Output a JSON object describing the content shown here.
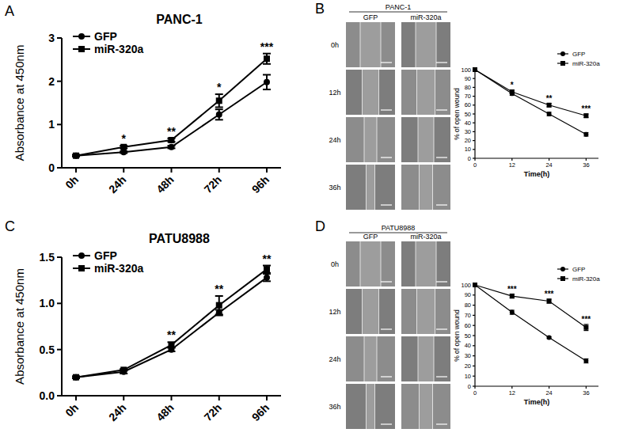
{
  "panel_labels": [
    "A",
    "B",
    "C",
    "D"
  ],
  "image_panels": [
    {
      "title": "PANC-1",
      "columns": [
        "GFP",
        "miR-320a"
      ],
      "rows": [
        "0h",
        "12h",
        "24h",
        "36h"
      ]
    },
    {
      "title": "PATU8988",
      "columns": [
        "GFP",
        "miR-320a"
      ],
      "rows": [
        "0h",
        "12h",
        "24h",
        "36h"
      ]
    }
  ],
  "chart_data": [
    {
      "type": "line",
      "title": "PANC-1",
      "y_label": "Absorbance at 450nm",
      "categories": [
        "0h",
        "24h",
        "48h",
        "72h",
        "96h"
      ],
      "ylim": [
        0,
        3
      ],
      "yticks": [
        0,
        1,
        2,
        3
      ],
      "legend": "upper left",
      "series": [
        {
          "name": "GFP",
          "color": "#000000",
          "marker": "circle",
          "values": [
            0.28,
            0.36,
            0.48,
            1.23,
            1.98
          ],
          "errors": [
            0.02,
            0.02,
            0.03,
            0.12,
            0.17
          ]
        },
        {
          "name": "miR-320a",
          "color": "#000000",
          "marker": "square",
          "values": [
            0.28,
            0.48,
            0.64,
            1.55,
            2.52
          ],
          "errors": [
            0.02,
            0.03,
            0.04,
            0.15,
            0.12
          ]
        }
      ],
      "annotations": [
        null,
        "*",
        "**",
        "*",
        "***"
      ]
    },
    {
      "type": "line",
      "x_label": "Time(h)",
      "y_label": "% of open wound",
      "x": [
        0,
        12,
        24,
        36
      ],
      "xlim": [
        0,
        40
      ],
      "xticks": [
        0,
        12,
        24,
        36
      ],
      "ylim": [
        0,
        100
      ],
      "yticks": [
        0,
        10,
        20,
        30,
        40,
        50,
        60,
        70,
        80,
        90,
        100
      ],
      "legend": "upper right",
      "series": [
        {
          "name": "GFP",
          "color": "#000000",
          "marker": "circle",
          "values": [
            100,
            73,
            50,
            27
          ],
          "errors": [
            0,
            2,
            2,
            2
          ]
        },
        {
          "name": "miR-320a",
          "color": "#000000",
          "marker": "square",
          "values": [
            100,
            75,
            60,
            48
          ],
          "errors": [
            0,
            2,
            2,
            2
          ]
        }
      ],
      "annotations": [
        null,
        "*",
        "**",
        "***"
      ]
    },
    {
      "type": "line",
      "title": "PATU8988",
      "y_label": "Absorbance at 450nm",
      "categories": [
        "0h",
        "24h",
        "48h",
        "72h",
        "96h"
      ],
      "ylim": [
        0,
        1.5
      ],
      "yticks": [
        {
          "value": 0,
          "label": "0.0"
        },
        {
          "value": 0.5,
          "label": "0.5"
        },
        {
          "value": 1,
          "label": "1.0"
        },
        {
          "value": 1.5,
          "label": "1.5"
        }
      ],
      "legend": "upper left",
      "series": [
        {
          "name": "GFP",
          "color": "#000000",
          "marker": "circle",
          "values": [
            0.2,
            0.26,
            0.5,
            0.9,
            1.28
          ],
          "errors": [
            0.01,
            0.02,
            0.02,
            0.03,
            0.04
          ]
        },
        {
          "name": "miR-320a",
          "color": "#000000",
          "marker": "square",
          "values": [
            0.2,
            0.28,
            0.55,
            0.98,
            1.37
          ],
          "errors": [
            0.01,
            0.01,
            0.03,
            0.1,
            0.04
          ]
        }
      ],
      "annotations": [
        null,
        null,
        "**",
        "**",
        "**"
      ]
    },
    {
      "type": "line",
      "x_label": "Time(h)",
      "y_label": "% of open wound",
      "x": [
        0,
        12,
        24,
        36
      ],
      "xlim": [
        0,
        40
      ],
      "xticks": [
        0,
        12,
        24,
        36
      ],
      "ylim": [
        0,
        100
      ],
      "yticks": [
        0,
        10,
        20,
        30,
        40,
        50,
        60,
        70,
        80,
        90,
        100
      ],
      "legend": "upper right",
      "series": [
        {
          "name": "GFP",
          "color": "#000000",
          "marker": "circle",
          "values": [
            100,
            73,
            48,
            25
          ],
          "errors": [
            0,
            2,
            1,
            2
          ]
        },
        {
          "name": "miR-320a",
          "color": "#000000",
          "marker": "square",
          "values": [
            100,
            89,
            84,
            58
          ],
          "errors": [
            0,
            2,
            2,
            3
          ]
        }
      ],
      "annotations": [
        null,
        "***",
        "***",
        "***"
      ]
    }
  ]
}
